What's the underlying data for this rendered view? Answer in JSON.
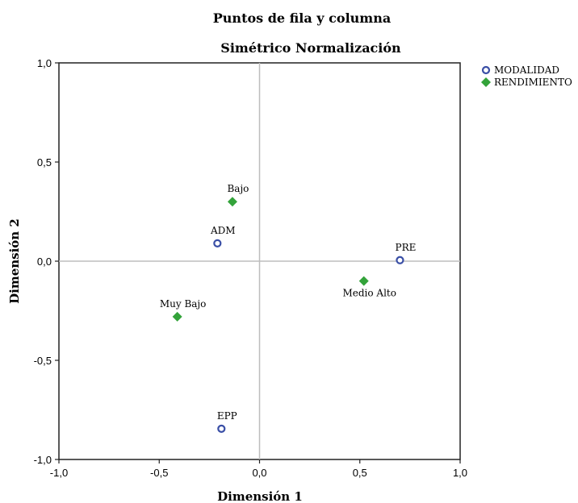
{
  "chart_data": {
    "type": "scatter",
    "title": "Puntos de fila y columna",
    "subtitle": "Simétrico Normalización",
    "xlabel": "Dimensión 1",
    "ylabel": "Dimensión 2",
    "xlim": [
      -1.0,
      1.0
    ],
    "ylim": [
      -1.0,
      1.0
    ],
    "xticks": [
      "-1,0",
      "-0,5",
      "0,0",
      "0,5",
      "1,0"
    ],
    "yticks": [
      "1,0",
      "0,5",
      "0,0",
      "-0,5",
      "-1,0"
    ],
    "grid": false,
    "reference_lines": [
      0,
      0
    ],
    "legend_position": "top-right",
    "series": [
      {
        "name": "MODALIDAD",
        "marker": "circle-open",
        "color": "#3a4fa6",
        "points": [
          {
            "label": "ADM",
            "x": -0.21,
            "y": 0.09,
            "label_pos": "above"
          },
          {
            "label": "PRE",
            "x": 0.7,
            "y": 0.005,
            "label_pos": "above"
          },
          {
            "label": "EPP",
            "x": -0.19,
            "y": -0.845,
            "label_pos": "above"
          }
        ]
      },
      {
        "name": "RENDIMIENTO",
        "marker": "diamond",
        "color": "#33a33a",
        "points": [
          {
            "label": "Bajo",
            "x": -0.135,
            "y": 0.3,
            "label_pos": "above"
          },
          {
            "label": "Muy Bajo",
            "x": -0.41,
            "y": -0.28,
            "label_pos": "above"
          },
          {
            "label": "Medio Alto",
            "x": 0.52,
            "y": -0.1,
            "label_pos": "below"
          }
        ]
      }
    ]
  }
}
